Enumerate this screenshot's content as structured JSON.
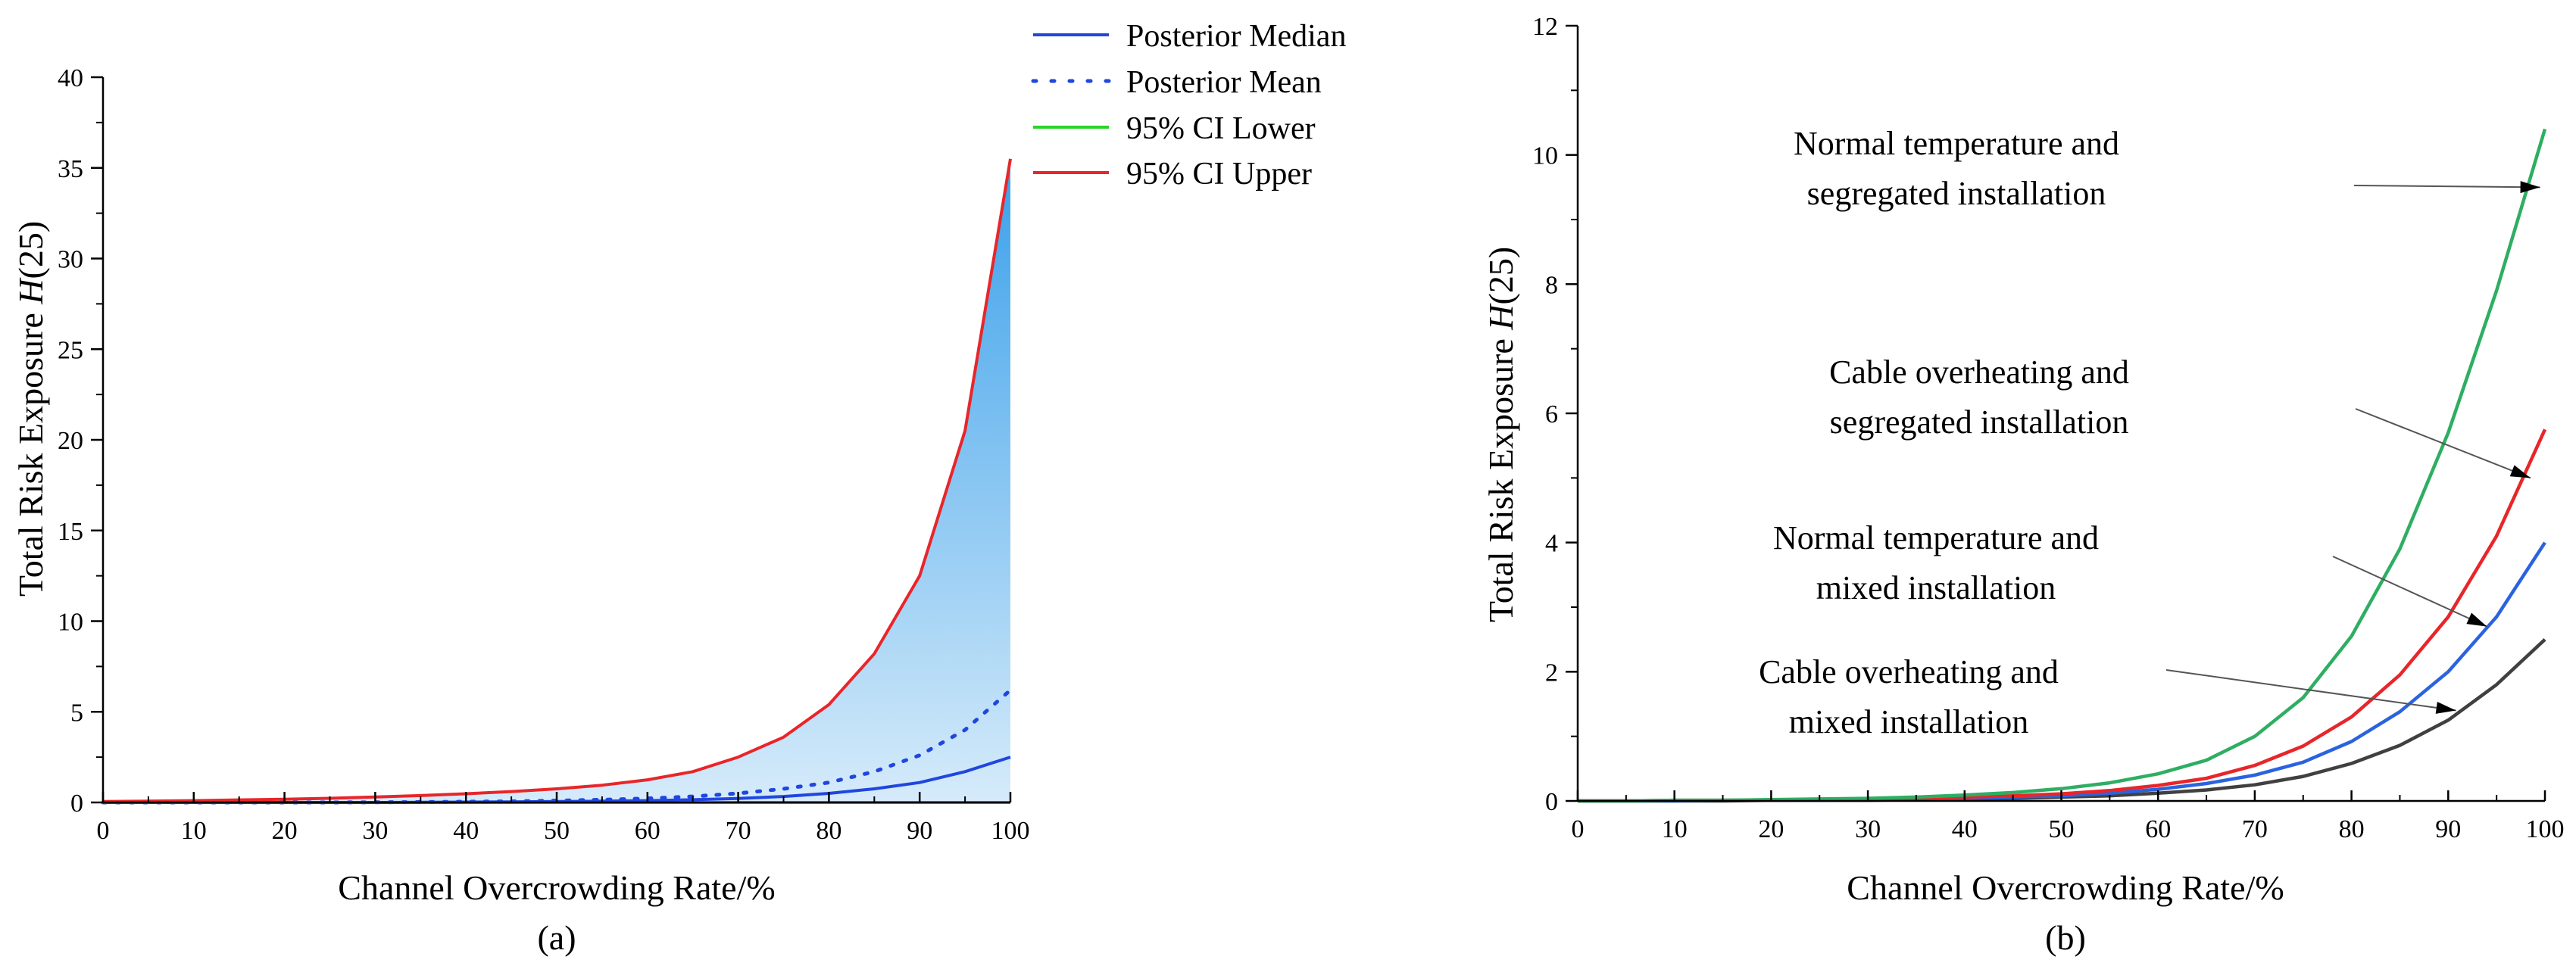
{
  "chart_data": [
    {
      "panel": "(a)",
      "type": "line",
      "fill_between": "95% CI Lower / 95% CI Upper",
      "xlabel": "Channel Overcrowding Rate/%",
      "ylabel_main": "Total Risk Exposure ",
      "ylabel_italic": "H",
      "ylabel_tail": "(25)",
      "xlim": [
        0,
        100
      ],
      "ylim": [
        0,
        40
      ],
      "xticks": [
        0,
        10,
        20,
        30,
        40,
        50,
        60,
        70,
        80,
        90,
        100
      ],
      "yticks": [
        0,
        5,
        10,
        15,
        20,
        25,
        30,
        35,
        40
      ],
      "x": [
        0,
        5,
        10,
        15,
        20,
        25,
        30,
        35,
        40,
        45,
        50,
        55,
        60,
        65,
        70,
        75,
        80,
        85,
        90,
        95,
        100
      ],
      "legend_position": "top-right outside",
      "series": [
        {
          "name": "Posterior Median",
          "color": "#2046e0",
          "style": "solid",
          "values": [
            0,
            0,
            0,
            0,
            0,
            0,
            0,
            0.01,
            0.02,
            0.03,
            0.05,
            0.07,
            0.1,
            0.15,
            0.22,
            0.33,
            0.5,
            0.75,
            1.1,
            1.7,
            2.5
          ]
        },
        {
          "name": "Posterior Mean",
          "color": "#2046e0",
          "style": "dotted",
          "values": [
            0,
            0,
            0,
            0,
            0,
            0,
            0.01,
            0.02,
            0.04,
            0.06,
            0.1,
            0.15,
            0.22,
            0.33,
            0.5,
            0.75,
            1.1,
            1.7,
            2.6,
            4.0,
            6.2
          ]
        },
        {
          "name": "95% CI Lower",
          "color": "#2ad42a",
          "style": "solid",
          "values": [
            0,
            0,
            0,
            0,
            0,
            0,
            0,
            0,
            0,
            0,
            0,
            0,
            0,
            0,
            0,
            0,
            0,
            0,
            0,
            0,
            0
          ]
        },
        {
          "name": "95% CI Upper",
          "color": "#e8262a",
          "style": "solid",
          "values": [
            0.05,
            0.07,
            0.1,
            0.14,
            0.18,
            0.23,
            0.3,
            0.38,
            0.48,
            0.6,
            0.75,
            0.95,
            1.25,
            1.7,
            2.5,
            3.6,
            5.4,
            8.2,
            12.5,
            20.5,
            35.5
          ]
        }
      ]
    },
    {
      "panel": "(b)",
      "type": "line",
      "xlabel": "Channel Overcrowding Rate/%",
      "ylabel_main": "Total Risk Exposure ",
      "ylabel_italic": "H",
      "ylabel_tail": "(25)",
      "xlim": [
        0,
        100
      ],
      "ylim": [
        0,
        12
      ],
      "xticks": [
        0,
        10,
        20,
        30,
        40,
        50,
        60,
        70,
        80,
        90,
        100
      ],
      "yticks": [
        0,
        2,
        4,
        6,
        8,
        10,
        12
      ],
      "x": [
        0,
        5,
        10,
        15,
        20,
        25,
        30,
        35,
        40,
        45,
        50,
        55,
        60,
        65,
        70,
        75,
        80,
        85,
        90,
        95,
        100
      ],
      "series": [
        {
          "name": "Normal temperature and segregated installation",
          "color": "#2eae62",
          "values": [
            0,
            0,
            0.01,
            0.01,
            0.02,
            0.03,
            0.04,
            0.06,
            0.09,
            0.13,
            0.19,
            0.28,
            0.42,
            0.63,
            1.0,
            1.6,
            2.55,
            3.9,
            5.7,
            7.9,
            10.4
          ]
        },
        {
          "name": "Cable overheating and segregated installation",
          "color": "#e8262a",
          "values": [
            0,
            0,
            0.01,
            0.01,
            0.01,
            0.02,
            0.03,
            0.04,
            0.06,
            0.08,
            0.11,
            0.16,
            0.24,
            0.35,
            0.55,
            0.85,
            1.3,
            1.95,
            2.85,
            4.1,
            5.75
          ]
        },
        {
          "name": "Normal temperature and mixed installation",
          "color": "#2a63e0",
          "values": [
            0,
            0,
            0,
            0.01,
            0.01,
            0.01,
            0.02,
            0.03,
            0.04,
            0.06,
            0.08,
            0.12,
            0.18,
            0.27,
            0.4,
            0.6,
            0.92,
            1.38,
            2.0,
            2.85,
            4.0
          ]
        },
        {
          "name": "Cable overheating and mixed installation",
          "color": "#404040",
          "values": [
            0,
            0,
            0,
            0,
            0.01,
            0.01,
            0.01,
            0.02,
            0.03,
            0.04,
            0.06,
            0.08,
            0.12,
            0.17,
            0.25,
            0.38,
            0.58,
            0.86,
            1.25,
            1.8,
            2.5
          ]
        }
      ],
      "annotations": [
        {
          "line1": "Normal temperature and",
          "line2": "segregated installation",
          "color": "#2eae62"
        },
        {
          "line1": "Cable overheating and",
          "line2": "segregated installation",
          "color": "#e8262a"
        },
        {
          "line1": "Normal temperature and",
          "line2": "mixed installation",
          "color": "#2a63e0"
        },
        {
          "line1": "Cable overheating and",
          "line2": "mixed installation",
          "color": "#404040"
        }
      ]
    }
  ]
}
